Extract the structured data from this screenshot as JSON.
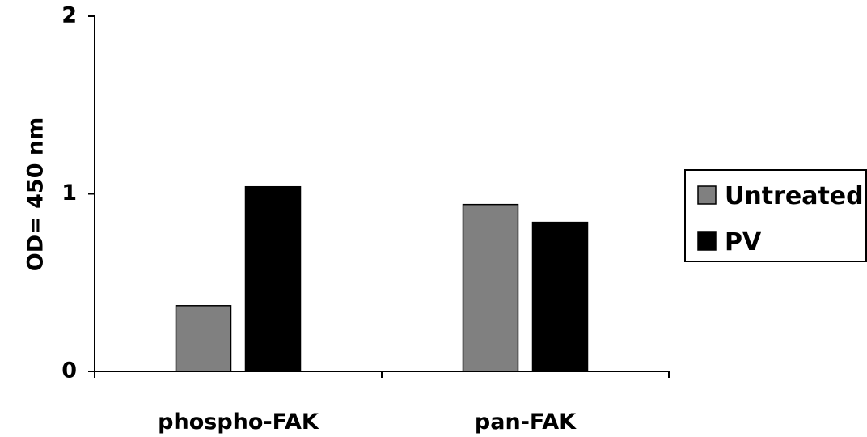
{
  "chart_data": {
    "type": "bar",
    "categories": [
      "phospho-FAK",
      "pan-FAK"
    ],
    "series": [
      {
        "name": "Untreated",
        "color": "#808080",
        "values": [
          0.37,
          0.94
        ]
      },
      {
        "name": "PV",
        "color": "#000000",
        "values": [
          1.04,
          0.84
        ]
      }
    ],
    "ylabel": "OD= 450 nm",
    "ylim": [
      0,
      2
    ],
    "yticks": [
      0,
      1,
      2
    ],
    "grid": false,
    "legend_position": "right"
  }
}
